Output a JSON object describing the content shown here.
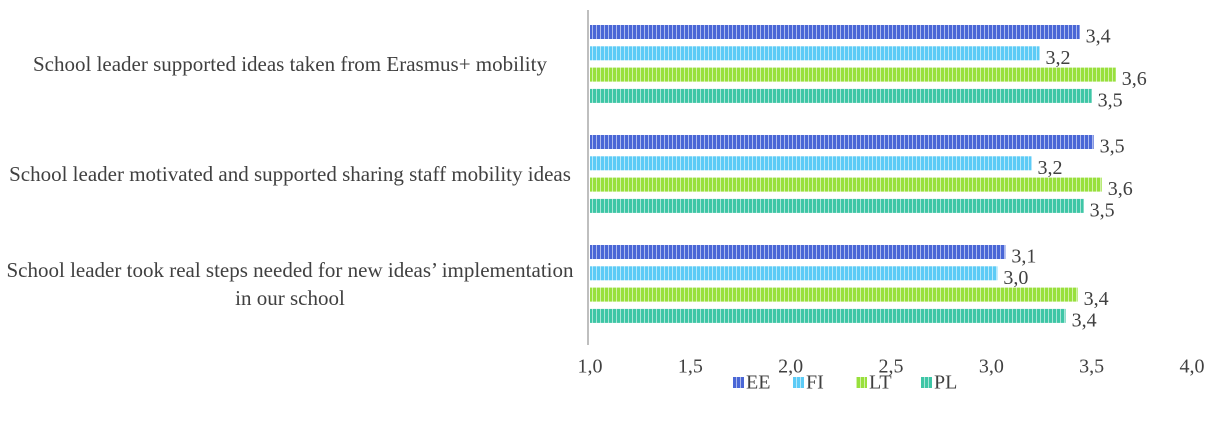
{
  "chart_data": {
    "type": "bar",
    "orientation": "horizontal",
    "categories": [
      "School leader supported ideas taken from Erasmus+ mobility",
      "School leader motivated and supported sharing staff mobility ideas",
      "School leader took real steps needed for new ideas’ implementation in our school"
    ],
    "series": [
      {
        "name": "EE",
        "color": "#4a67d6",
        "values": [
          3.44,
          3.51,
          3.07
        ],
        "value_labels": [
          "3,4",
          "3,5",
          "3,1"
        ]
      },
      {
        "name": "FI",
        "color": "#5ccbf6",
        "values": [
          3.24,
          3.2,
          3.03
        ],
        "value_labels": [
          "3,2",
          "3,2",
          "3,0"
        ]
      },
      {
        "name": "LT",
        "color": "#98e03c",
        "values": [
          3.62,
          3.55,
          3.43
        ],
        "value_labels": [
          "3,6",
          "3,6",
          "3,4"
        ]
      },
      {
        "name": "PL",
        "color": "#3ec6a6",
        "values": [
          3.5,
          3.46,
          3.37
        ],
        "value_labels": [
          "3,5",
          "3,5",
          "3,4"
        ]
      }
    ],
    "xlim": [
      1,
      4
    ],
    "xticks": [
      {
        "value": 1,
        "label": "1,0"
      },
      {
        "value": 1.5,
        "label": "1,5"
      },
      {
        "value": 2,
        "label": "2,0"
      },
      {
        "value": 2.5,
        "label": "2,5"
      },
      {
        "value": 3,
        "label": "3,0"
      },
      {
        "value": 3.5,
        "label": "3,5"
      },
      {
        "value": 4,
        "label": "4,0"
      }
    ],
    "legend": "bottom"
  }
}
